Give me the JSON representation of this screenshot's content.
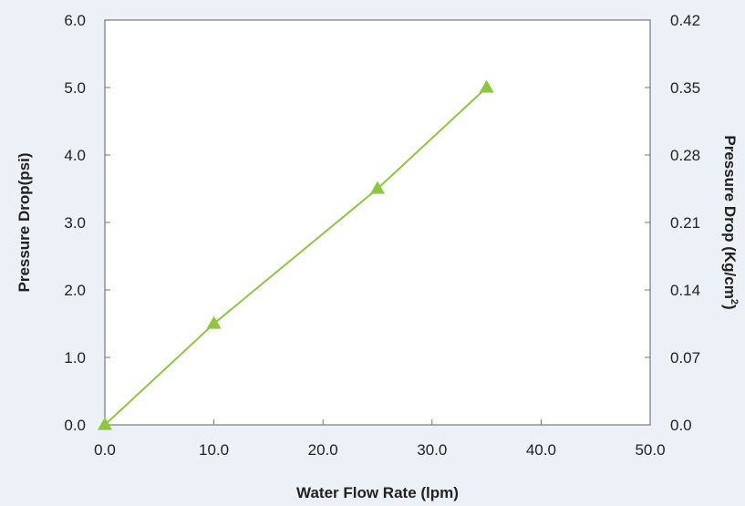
{
  "chart_data": {
    "type": "line",
    "title": "",
    "xlabel": "Water Flow Rate (lpm)",
    "ylabel": "Pressure Drop(psi)",
    "y2label": "Pressure Drop (Kg/cm",
    "y2label_superscript": "2",
    "y2label_close": ")",
    "xlim": [
      0,
      50
    ],
    "ylim": [
      0,
      6
    ],
    "y2lim": [
      0,
      0.42
    ],
    "x_ticks": [
      "0.0",
      "10.0",
      "20.0",
      "30.0",
      "40.0",
      "50.0"
    ],
    "y_ticks": [
      "0.0",
      "1.0",
      "2.0",
      "3.0",
      "4.0",
      "5.0",
      "6.0"
    ],
    "y2_ticks": [
      "0.0",
      "0.07",
      "0.14",
      "0.21",
      "0.28",
      "0.35",
      "0.42"
    ],
    "grid": false,
    "series": [
      {
        "x": [
          0,
          10,
          25,
          35
        ],
        "y": [
          0,
          1.5,
          3.5,
          5.0
        ],
        "color": "#8dc63f",
        "marker": "triangle"
      }
    ]
  },
  "colors": {
    "background": "#ebf1f7",
    "plot_background": "#ffffff",
    "axis": "#777777",
    "series": "#8dc63f"
  }
}
